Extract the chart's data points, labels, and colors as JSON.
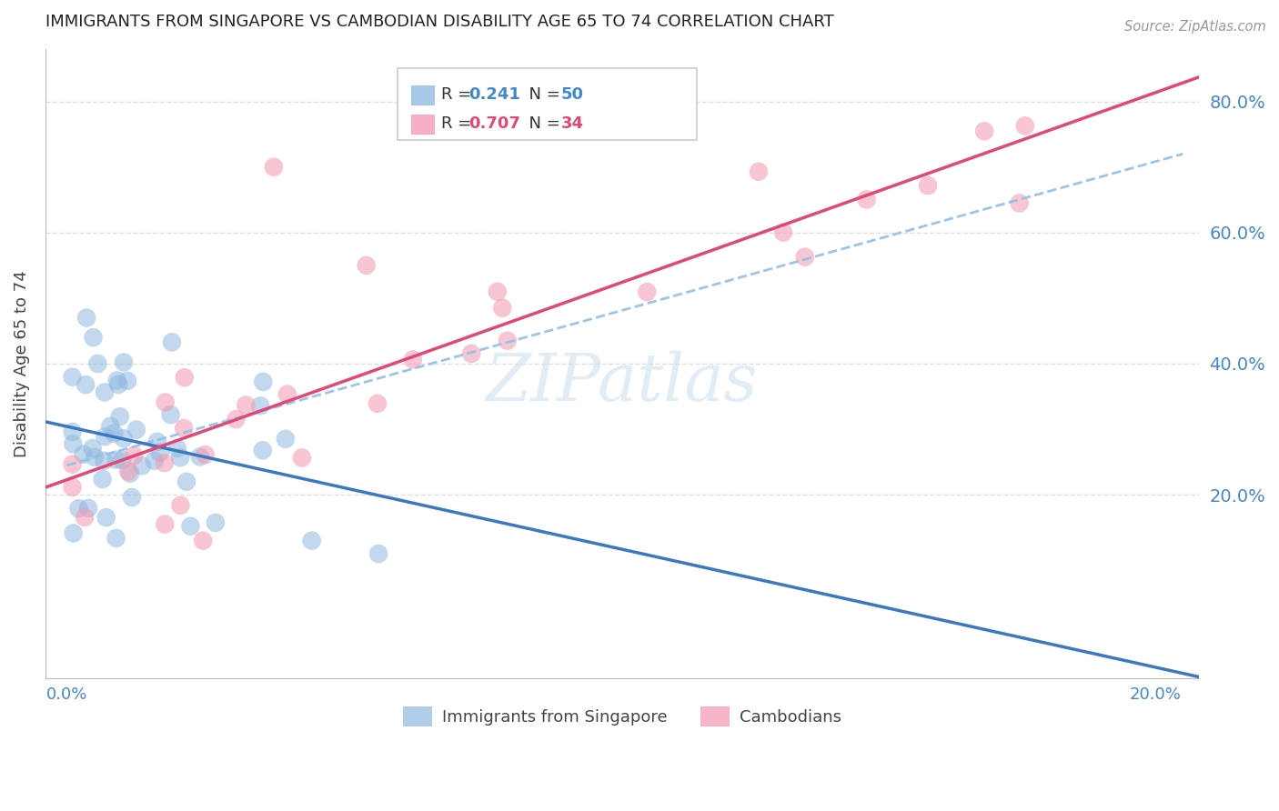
{
  "title": "IMMIGRANTS FROM SINGAPORE VS CAMBODIAN DISABILITY AGE 65 TO 74 CORRELATION CHART",
  "source": "Source: ZipAtlas.com",
  "ylabel": "Disability Age 65 to 74",
  "R_singapore": 0.241,
  "N_singapore": 50,
  "R_cambodian": 0.707,
  "N_cambodian": 34,
  "xlim_min": -0.004,
  "xlim_max": 0.208,
  "ylim_min": -0.08,
  "ylim_max": 0.88,
  "yticks": [
    0.2,
    0.4,
    0.6,
    0.8
  ],
  "ytick_labels": [
    "20.0%",
    "40.0%",
    "60.0%",
    "80.0%"
  ],
  "blue_scatter_color": "#90b8e0",
  "pink_scatter_color": "#f498b0",
  "blue_line_color": "#3a78c0",
  "pink_line_color": "#e04878",
  "dashed_line_color": "#90c0e8",
  "title_color": "#222222",
  "axis_label_color": "#4488cc",
  "grid_color": "#d8d8d8",
  "background_color": "#ffffff",
  "watermark_color": "#c8dff0",
  "watermark_text": "ZIPatlas",
  "legend_blue_box": "#a8c8e8",
  "legend_pink_box": "#f4b0c4"
}
